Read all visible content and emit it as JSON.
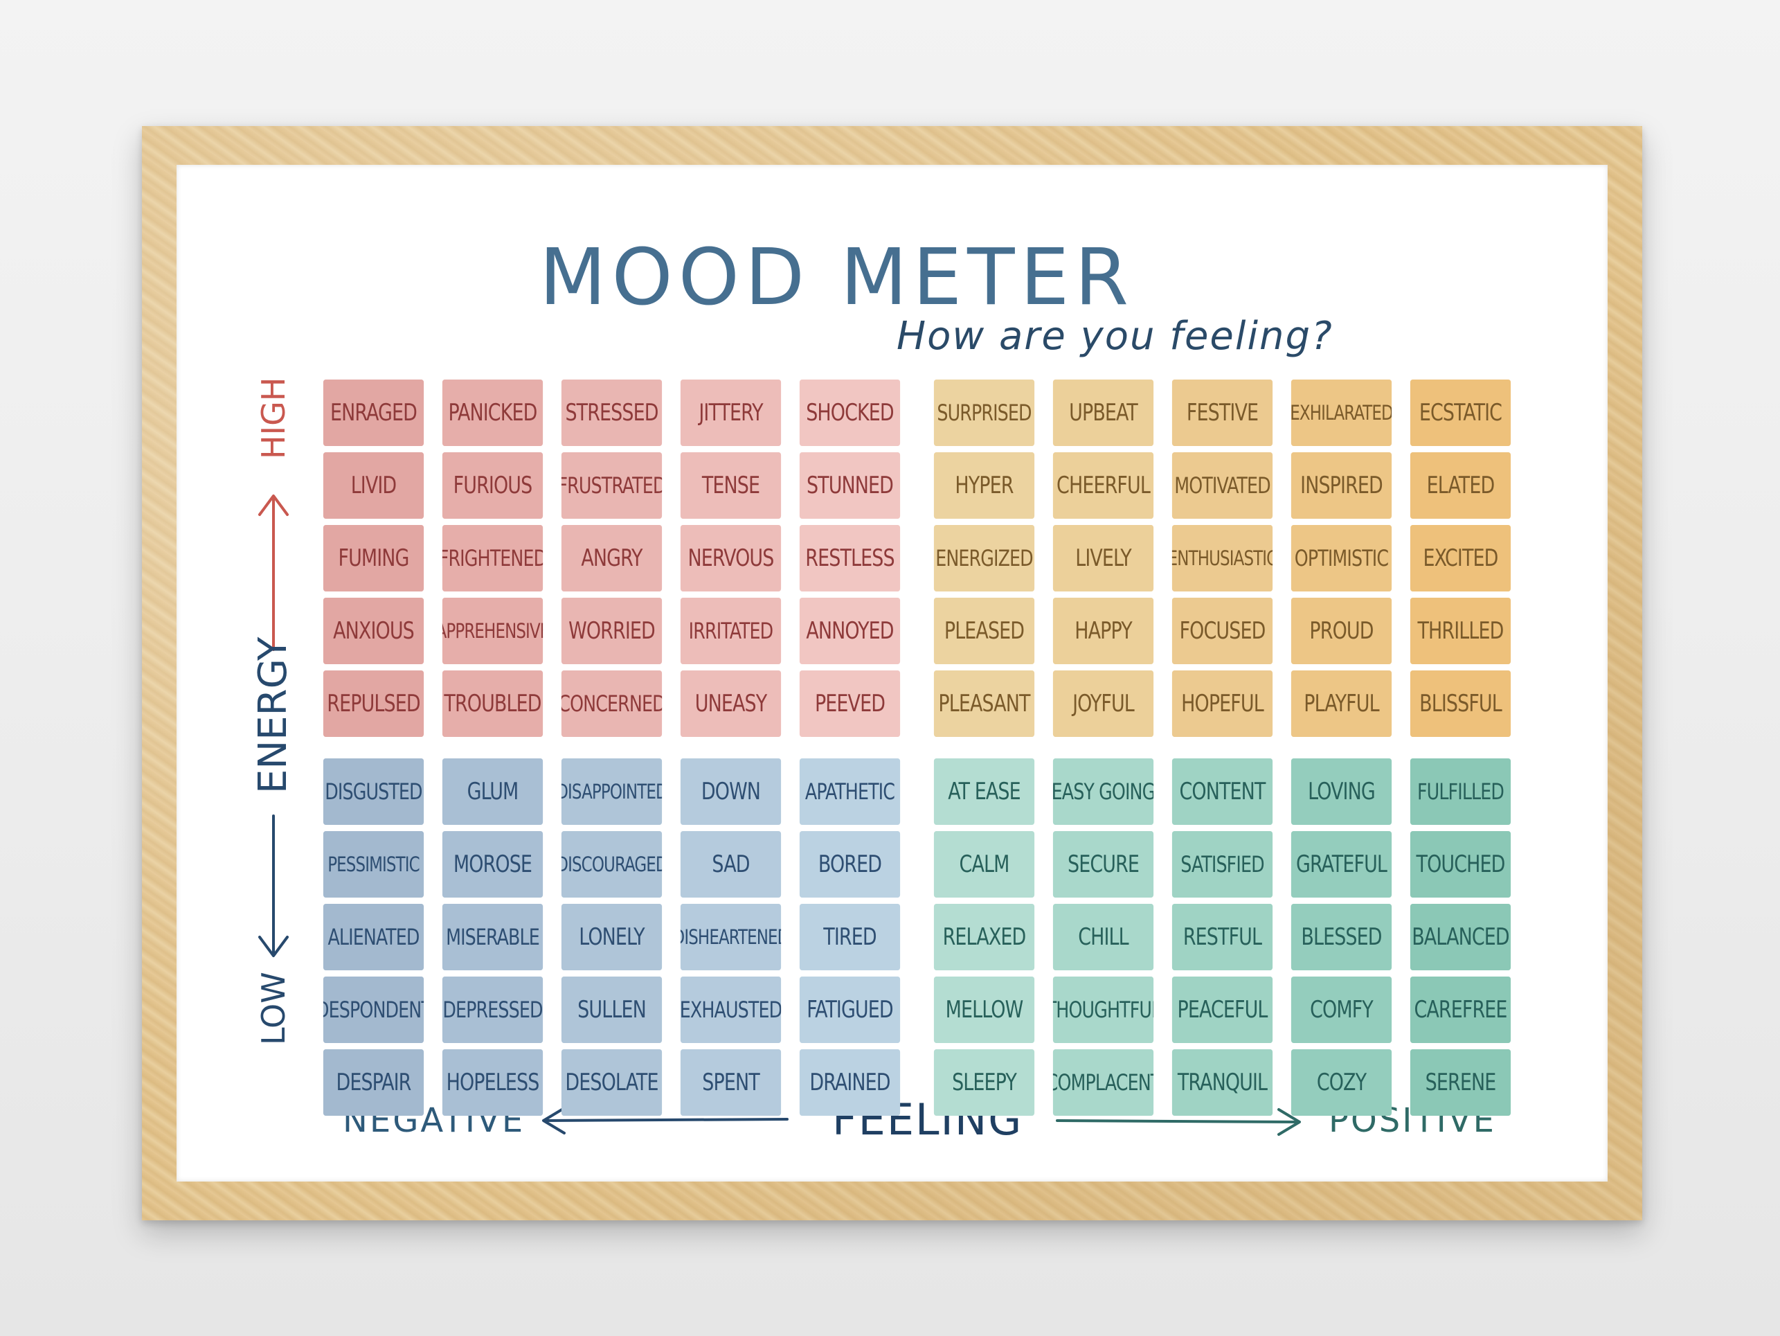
{
  "title": "MOOD METER",
  "subtitle": "How are you feeling?",
  "axes": {
    "vertical_label": "ENERGY",
    "vertical_high": "HIGH",
    "vertical_low": "LOW",
    "horizontal_label": "FEELING",
    "horizontal_negative": "NEGATIVE",
    "horizontal_positive": "POSITIVE"
  },
  "colors": {
    "red": [
      "#e2a7a3",
      "#e6aeaa",
      "#e9b6b2",
      "#edbdb9",
      "#f1c6c2"
    ],
    "yellow": [
      "#ecd3a0",
      "#ecd09a",
      "#ecca90",
      "#edc686",
      "#eec17b"
    ],
    "blue": [
      "#a3b9cf",
      "#a9bfd4",
      "#afc5d8",
      "#b5cbdd",
      "#bbd2e2"
    ],
    "green": [
      "#b4ddd2",
      "#a9d8cb",
      "#9fd3c4",
      "#94cdbd",
      "#8bc8b6"
    ],
    "red_text": "#8e3a3a",
    "yellow_text": "#7a5a2a",
    "blue_text": "#2e4e72",
    "green_text": "#27605a",
    "title": "#466f90",
    "high": "#c9584f",
    "energy": "#27496d",
    "positive": "#2f6a66"
  },
  "quadrants": {
    "top_left": [
      [
        "ENRAGED",
        "PANICKED",
        "STRESSED",
        "JITTERY",
        "SHOCKED"
      ],
      [
        "LIVID",
        "FURIOUS",
        "FRUSTRATED",
        "TENSE",
        "STUNNED"
      ],
      [
        "FUMING",
        "FRIGHTENED",
        "ANGRY",
        "NERVOUS",
        "RESTLESS"
      ],
      [
        "ANXIOUS",
        "APPREHENSIVE",
        "WORRIED",
        "IRRITATED",
        "ANNOYED"
      ],
      [
        "REPULSED",
        "TROUBLED",
        "CONCERNED",
        "UNEASY",
        "PEEVED"
      ]
    ],
    "top_right": [
      [
        "SURPRISED",
        "UPBEAT",
        "FESTIVE",
        "EXHILARATED",
        "ECSTATIC"
      ],
      [
        "HYPER",
        "CHEERFUL",
        "MOTIVATED",
        "INSPIRED",
        "ELATED"
      ],
      [
        "ENERGIZED",
        "LIVELY",
        "ENTHUSIASTIC",
        "OPTIMISTIC",
        "EXCITED"
      ],
      [
        "PLEASED",
        "HAPPY",
        "FOCUSED",
        "PROUD",
        "THRILLED"
      ],
      [
        "PLEASANT",
        "JOYFUL",
        "HOPEFUL",
        "PLAYFUL",
        "BLISSFUL"
      ]
    ],
    "bottom_left": [
      [
        "DISGUSTED",
        "GLUM",
        "DISAPPOINTED",
        "DOWN",
        "APATHETIC"
      ],
      [
        "PESSIMISTIC",
        "MOROSE",
        "DISCOURAGED",
        "SAD",
        "BORED"
      ],
      [
        "ALIENATED",
        "MISERABLE",
        "LONELY",
        "DISHEARTENED",
        "TIRED"
      ],
      [
        "DESPONDENT",
        "DEPRESSED",
        "SULLEN",
        "EXHAUSTED",
        "FATIGUED"
      ],
      [
        "DESPAIR",
        "HOPELESS",
        "DESOLATE",
        "SPENT",
        "DRAINED"
      ]
    ],
    "bottom_right": [
      [
        "AT EASE",
        "EASY GOING",
        "CONTENT",
        "LOVING",
        "FULFILLED"
      ],
      [
        "CALM",
        "SECURE",
        "SATISFIED",
        "GRATEFUL",
        "TOUCHED"
      ],
      [
        "RELAXED",
        "CHILL",
        "RESTFUL",
        "BLESSED",
        "BALANCED"
      ],
      [
        "MELLOW",
        "THOUGHTFUL",
        "PEACEFUL",
        "COMFY",
        "CAREFREE"
      ],
      [
        "SLEEPY",
        "COMPLACENT",
        "TRANQUIL",
        "COZY",
        "SERENE"
      ]
    ]
  }
}
